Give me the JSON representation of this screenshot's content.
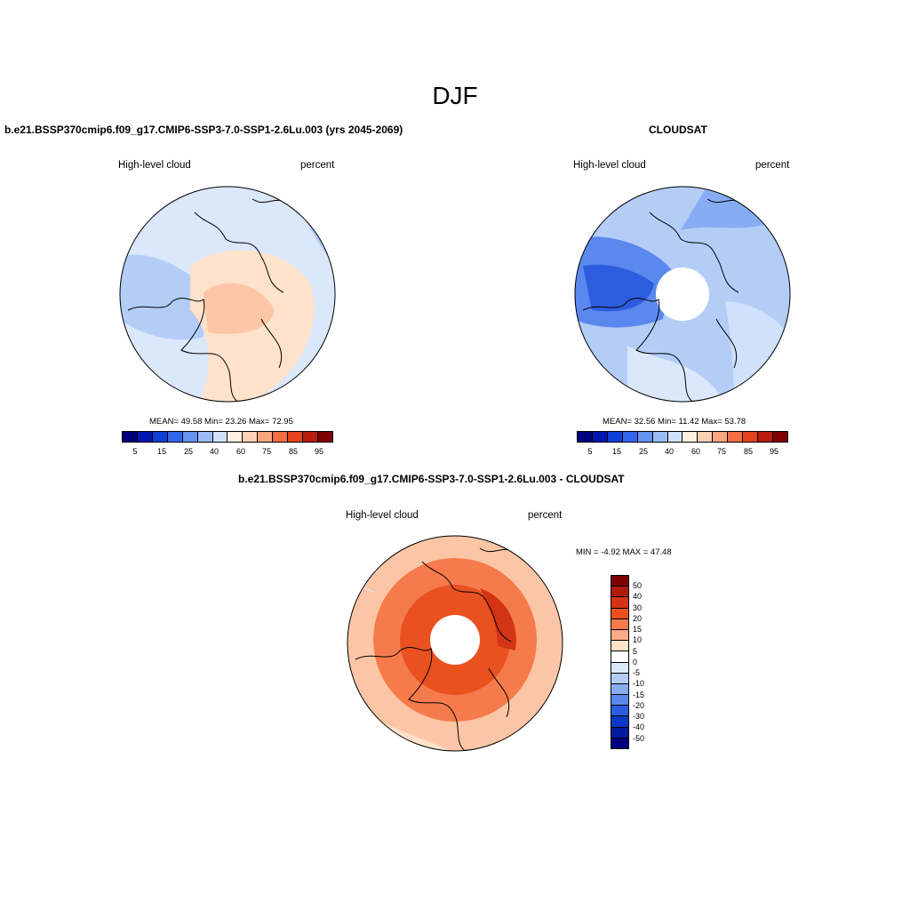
{
  "figure": {
    "season": "DJF"
  },
  "colors": {
    "abs_scale": [
      "#00007f",
      "#0016b0",
      "#0e3fd8",
      "#3366ee",
      "#6394f2",
      "#9bbcf6",
      "#cfe1fb",
      "#fff0e1",
      "#fcd0b4",
      "#fca67e",
      "#f46d43",
      "#e5431e",
      "#b81c10",
      "#7f0000"
    ],
    "diff_scale": [
      "#7f0000",
      "#b21a0e",
      "#d33414",
      "#e9511f",
      "#f57b4d",
      "#fca986",
      "#fee2cb",
      "#ffffff",
      "#dbe8fb",
      "#b3cdf7",
      "#86acf3",
      "#5a88ee",
      "#2c5ddf",
      "#0c38c8",
      "#001a9c",
      "#00007f"
    ]
  },
  "panel_left": {
    "title": "b.e21.BSSP370cmip6.f09_g17.CMIP6-SSP3-7.0-SSP1-2.6Lu.003 (yrs 2045-2069)",
    "left_label": "High-level cloud",
    "right_label": "percent",
    "stats": "MEAN=  49.58  Min=  23.26  Max=  72.95"
  },
  "panel_right": {
    "title": "CLOUDSAT",
    "left_label": "High-level cloud",
    "right_label": "percent",
    "stats": "MEAN=  32.56  Min=  11.42  Max=  53.78"
  },
  "panel_bottom": {
    "title": "b.e21.BSSP370cmip6.f09_g17.CMIP6-SSP3-7.0-SSP1-2.6Lu.003 - CLOUDSAT",
    "left_label": "High-level cloud",
    "right_label": "percent",
    "minmax": "MIN =  -4.92 MAX =  47.48"
  },
  "abs_colorbar_labels": [
    "5",
    "15",
    "25",
    "40",
    "60",
    "75",
    "85",
    "95"
  ],
  "diff_colorbar_labels": [
    "50",
    "40",
    "30",
    "20",
    "15",
    "10",
    "5",
    "0",
    "-5",
    "-10",
    "-15",
    "-20",
    "-30",
    "-40",
    "-50"
  ],
  "chart_data": [
    {
      "type": "heatmap",
      "projection": "north polar stereographic",
      "title": "b.e21.BSSP370cmip6.f09_g17.CMIP6-SSP3-7.0-SSP1-2.6Lu.003 (yrs 2045-2069)",
      "variable": "High-level cloud",
      "units": "percent",
      "mean": 49.58,
      "min": 23.26,
      "max": 72.95,
      "levels": [
        5,
        10,
        15,
        20,
        25,
        30,
        40,
        50,
        60,
        70,
        75,
        80,
        85,
        90,
        95
      ]
    },
    {
      "type": "heatmap",
      "projection": "north polar stereographic",
      "title": "CLOUDSAT",
      "variable": "High-level cloud",
      "units": "percent",
      "mean": 32.56,
      "min": 11.42,
      "max": 53.78,
      "levels": [
        5,
        10,
        15,
        20,
        25,
        30,
        40,
        50,
        60,
        70,
        75,
        80,
        85,
        90,
        95
      ]
    },
    {
      "type": "heatmap",
      "projection": "north polar stereographic",
      "title": "b.e21.BSSP370cmip6.f09_g17.CMIP6-SSP3-7.0-SSP1-2.6Lu.003 - CLOUDSAT",
      "variable": "High-level cloud",
      "units": "percent",
      "min": -4.92,
      "max": 47.48,
      "levels": [
        -50,
        -40,
        -30,
        -20,
        -15,
        -10,
        -5,
        0,
        5,
        10,
        15,
        20,
        30,
        40,
        50
      ]
    }
  ]
}
